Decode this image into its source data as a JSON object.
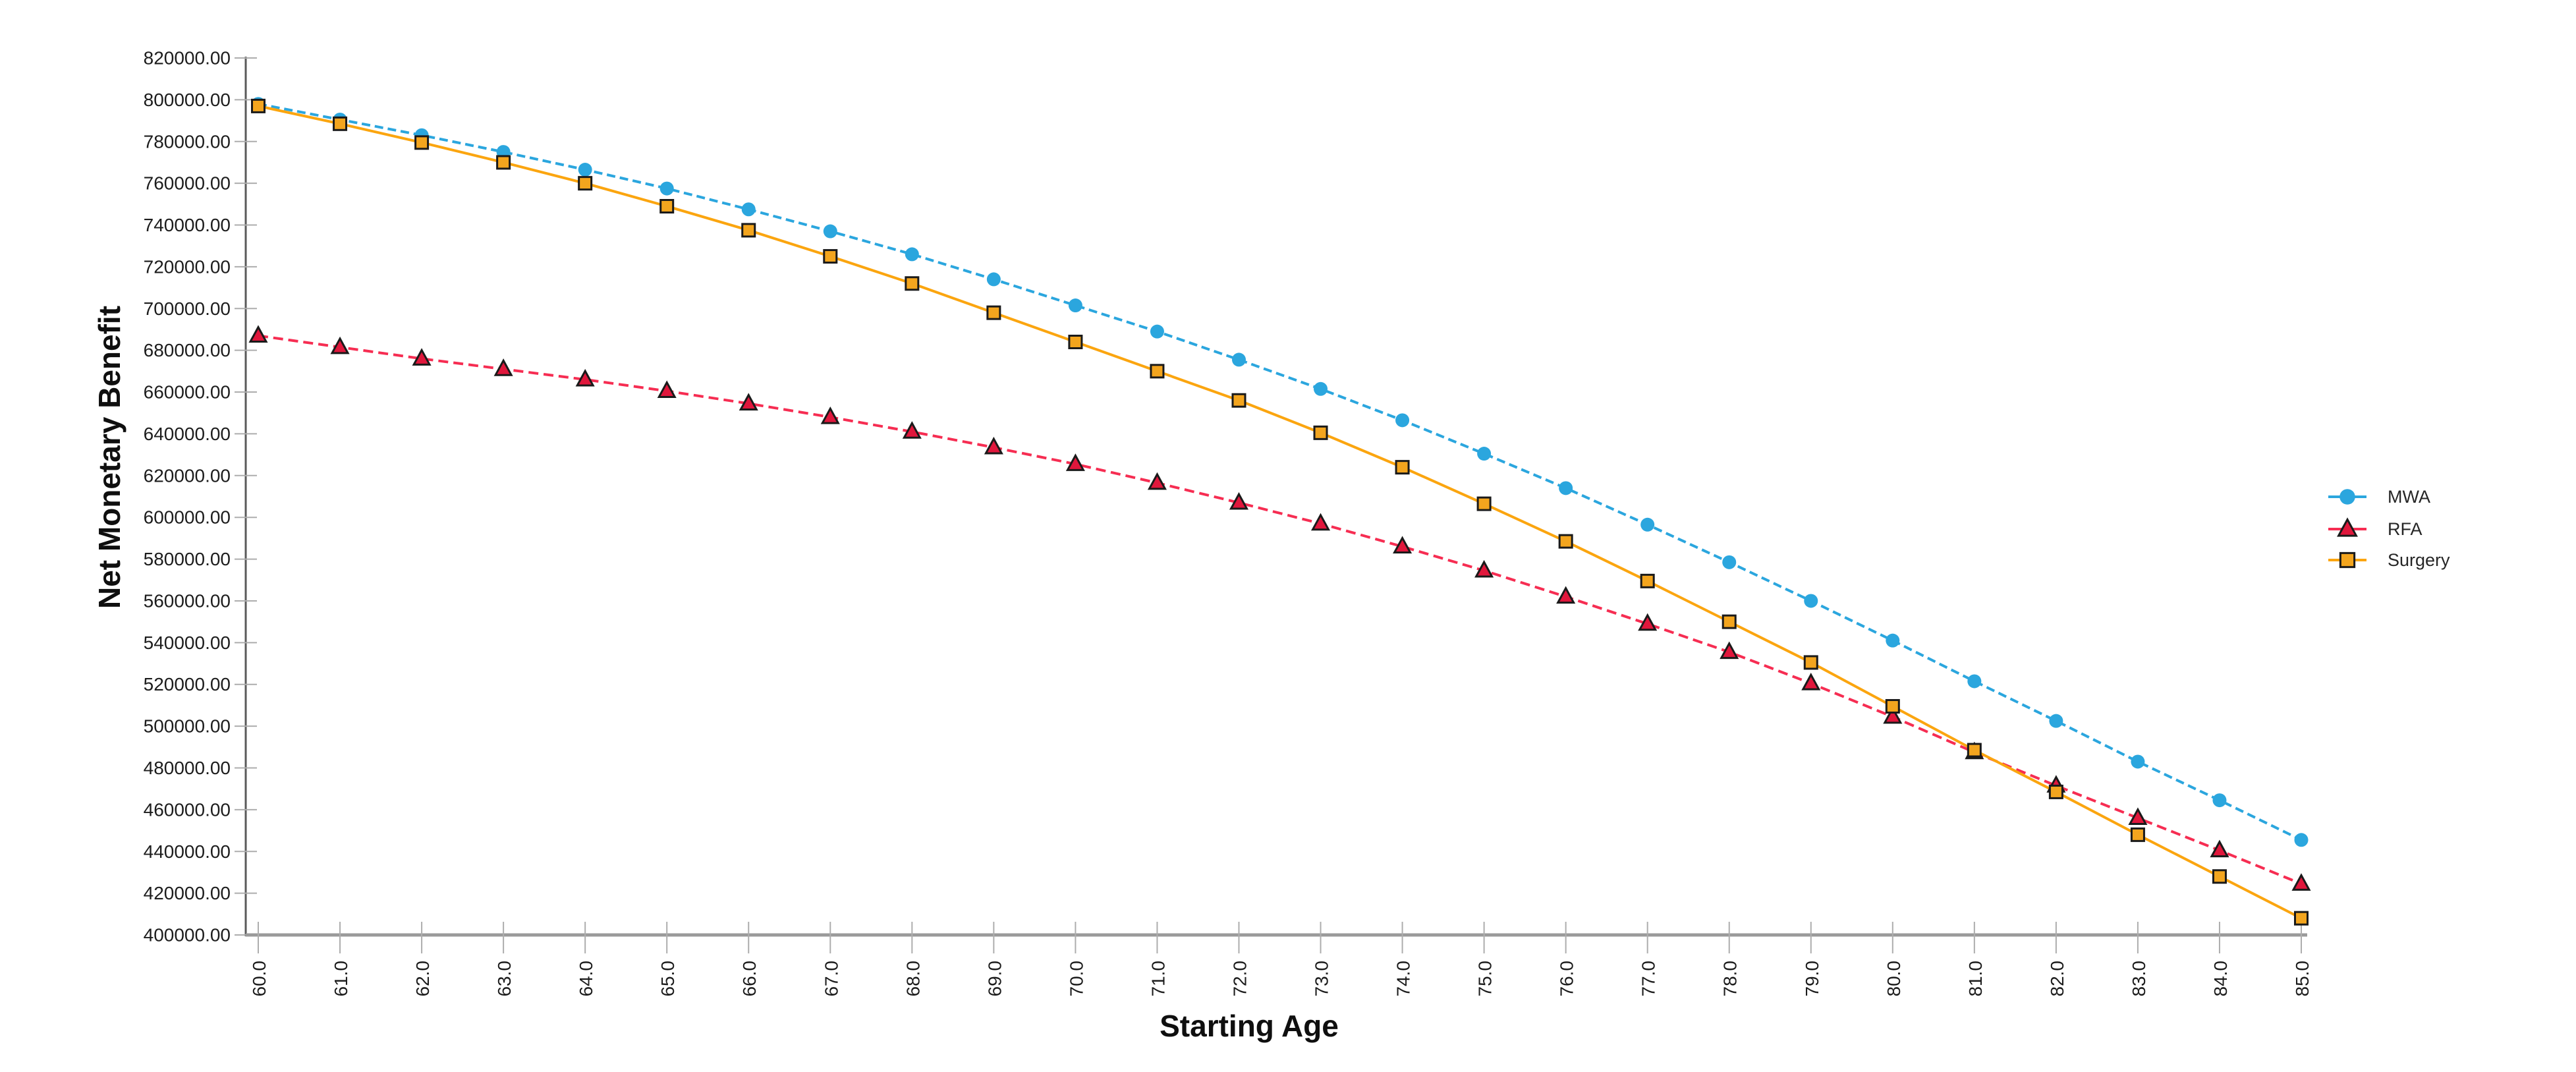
{
  "figure": {
    "background": "#ffffff"
  },
  "chart_data": {
    "type": "line",
    "title": "",
    "xlabel": "Starting Age",
    "ylabel": "Net Monetary Benefit",
    "x": [
      60,
      61,
      62,
      63,
      64,
      65,
      66,
      67,
      68,
      69,
      70,
      71,
      72,
      73,
      74,
      75,
      76,
      77,
      78,
      79,
      80,
      81,
      82,
      83,
      84,
      85
    ],
    "x_tick_labels": [
      "60.0",
      "61.0",
      "62.0",
      "63.0",
      "64.0",
      "65.0",
      "66.0",
      "67.0",
      "68.0",
      "69.0",
      "70.0",
      "71.0",
      "72.0",
      "73.0",
      "74.0",
      "75.0",
      "76.0",
      "77.0",
      "78.0",
      "79.0",
      "80.0",
      "81.0",
      "82.0",
      "83.0",
      "84.0",
      "85.0"
    ],
    "xlim": [
      60,
      85
    ],
    "ylim": [
      400000,
      820000
    ],
    "y_tick_step": 20000,
    "y_tick_labels": [
      "400000.00",
      "420000.00",
      "440000.00",
      "460000.00",
      "480000.00",
      "500000.00",
      "520000.00",
      "540000.00",
      "560000.00",
      "580000.00",
      "600000.00",
      "620000.00",
      "640000.00",
      "660000.00",
      "680000.00",
      "700000.00",
      "720000.00",
      "740000.00",
      "760000.00",
      "780000.00",
      "800000.00",
      "820000.00"
    ],
    "grid": false,
    "legend_position": "right",
    "series": [
      {
        "name": "MWA",
        "line_color": "#2BA6DE",
        "line_style": "dashed",
        "marker": "circle",
        "marker_fill": "#2BA6DE",
        "marker_stroke": "none",
        "values": [
          798000,
          790500,
          783000,
          775000,
          766500,
          757500,
          747500,
          737000,
          726000,
          714000,
          701500,
          689000,
          675500,
          661500,
          646500,
          630500,
          614000,
          596500,
          578500,
          560000,
          541000,
          521500,
          502500,
          483000,
          464500,
          445500
        ]
      },
      {
        "name": "RFA",
        "line_color": "#F62D52",
        "line_style": "dashed",
        "marker": "triangle",
        "marker_fill": "#E0173C",
        "marker_stroke": "#1a1a1a",
        "values": [
          687000,
          681500,
          676000,
          671000,
          666000,
          660500,
          654500,
          648000,
          641000,
          633500,
          625500,
          616500,
          607000,
          597000,
          586000,
          574500,
          562000,
          549000,
          535500,
          520500,
          504500,
          487500,
          471500,
          456000,
          440500,
          424500
        ]
      },
      {
        "name": "Surgery",
        "line_color": "#FBA50F",
        "line_style": "solid",
        "marker": "square",
        "marker_fill": "#F3A51E",
        "marker_stroke": "#1a1a1a",
        "values": [
          797000,
          788500,
          779500,
          770000,
          760000,
          749000,
          737500,
          725000,
          712000,
          698000,
          684000,
          670000,
          656000,
          640500,
          624000,
          606500,
          588500,
          569500,
          550000,
          530500,
          509500,
          488500,
          468500,
          448000,
          428000,
          408000
        ]
      }
    ],
    "axis_style": {
      "y_axis_color": "#5A5A5A",
      "x_axis_color": "#9A9A9A",
      "tick_color": "#ADADAD",
      "tick_label_color": "#1c1c1c",
      "title_color": "#0f0f0f"
    }
  }
}
